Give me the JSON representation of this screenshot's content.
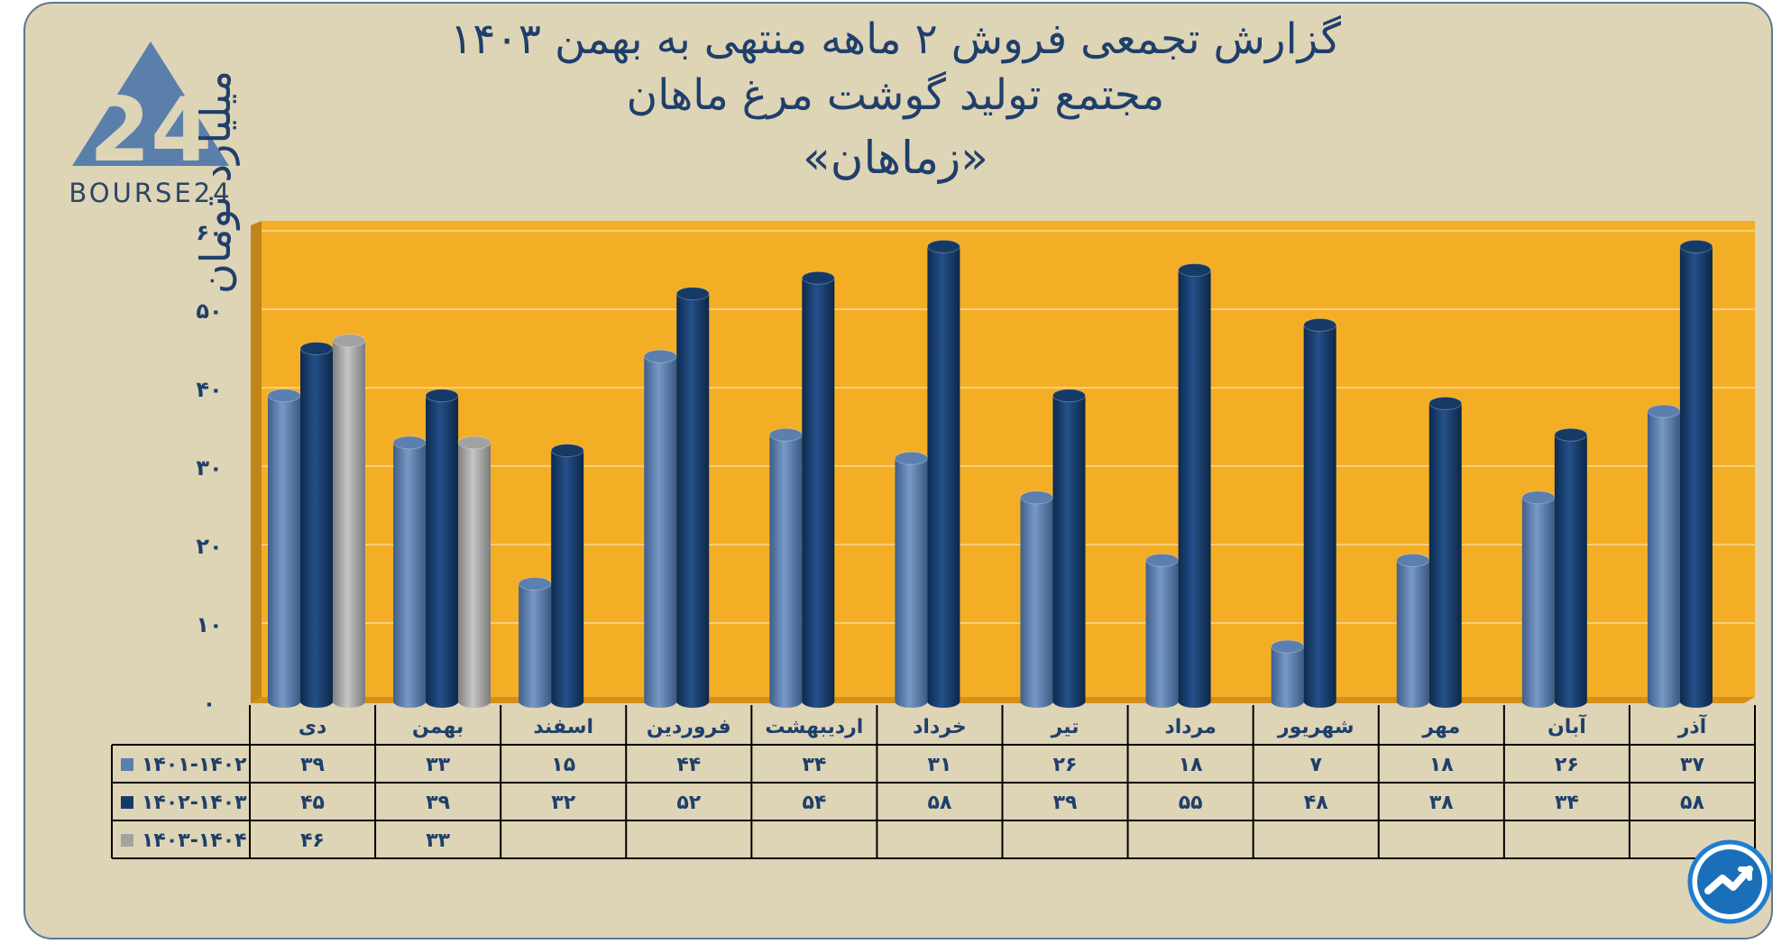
{
  "title": {
    "line1": "گزارش تجمعی فروش ۲ ماهه منتهی به بهمن ۱۴۰۳",
    "line2": "مجتمع تولید گوشت مرغ ماهان",
    "line3": "«زماهان»"
  },
  "logo": {
    "text": "BOURSE24",
    "mark": "24"
  },
  "colors": {
    "background": "#ded4b6",
    "plot": "#f4ae25",
    "series1": "#5b7fae",
    "series2": "#163a66",
    "series3": "#a2a2a2",
    "text": "#1f3f6b"
  },
  "chart_data": {
    "type": "bar",
    "ylabel": "میلیارد تومان",
    "ylim": [
      0,
      60
    ],
    "yticks": [
      "۰",
      "۱۰",
      "۲۰",
      "۳۰",
      "۴۰",
      "۵۰",
      "۶۰"
    ],
    "grid": true,
    "categories": [
      "دی",
      "بهمن",
      "اسفند",
      "فروردین",
      "اردیبهشت",
      "خرداد",
      "تیر",
      "مرداد",
      "شهریور",
      "مهر",
      "آبان",
      "آذر"
    ],
    "series": [
      {
        "name": "۱۴۰۱-۱۴۰۲",
        "values": [
          39,
          33,
          15,
          44,
          34,
          31,
          26,
          18,
          7,
          18,
          26,
          37
        ],
        "labels": [
          "۳۹",
          "۳۳",
          "۱۵",
          "۴۴",
          "۳۴",
          "۳۱",
          "۲۶",
          "۱۸",
          "۷",
          "۱۸",
          "۲۶",
          "۳۷"
        ]
      },
      {
        "name": "۱۴۰۲-۱۴۰۳",
        "values": [
          45,
          39,
          32,
          52,
          54,
          58,
          39,
          55,
          48,
          38,
          34,
          58
        ],
        "labels": [
          "۴۵",
          "۳۹",
          "۳۲",
          "۵۲",
          "۵۴",
          "۵۸",
          "۳۹",
          "۵۵",
          "۴۸",
          "۳۸",
          "۳۴",
          "۵۸"
        ]
      },
      {
        "name": "۱۴۰۳-۱۴۰۴",
        "values": [
          46,
          33,
          null,
          null,
          null,
          null,
          null,
          null,
          null,
          null,
          null,
          null
        ],
        "labels": [
          "۴۶",
          "۳۳",
          "",
          "",
          "",
          "",
          "",
          "",
          "",
          "",
          "",
          ""
        ]
      }
    ]
  }
}
